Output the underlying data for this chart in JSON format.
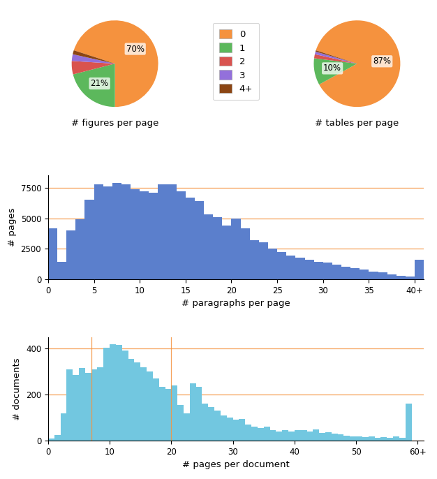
{
  "pie_figures": {
    "values": [
      70,
      21,
      5,
      2.5,
      1.5
    ],
    "colors": [
      "#f5923e",
      "#5cb85c",
      "#d9534f",
      "#9370DB",
      "#8B4513"
    ],
    "labels": [
      "0",
      "1",
      "2",
      "3",
      "4+"
    ],
    "autopct_vals": [
      70,
      21,
      0,
      0,
      0
    ],
    "autopct_strs": [
      "70%",
      "21%",
      "",
      "",
      ""
    ],
    "title": "# figures per page",
    "startangle": 162,
    "counterclock": false
  },
  "pie_tables": {
    "values": [
      87,
      10,
      1.5,
      1,
      0.5
    ],
    "colors": [
      "#f5923e",
      "#5cb85c",
      "#d9534f",
      "#9370DB",
      "#8B4513"
    ],
    "labels": [
      "0",
      "1",
      "2",
      "3",
      "4+"
    ],
    "autopct_strs": [
      "87%",
      "10%",
      "",
      "",
      ""
    ],
    "title": "# tables per page",
    "startangle": 162,
    "counterclock": false
  },
  "hist_paragraphs": {
    "values": [
      4200,
      1400,
      4000,
      4900,
      6500,
      7800,
      7600,
      7900,
      7800,
      7400,
      7200,
      7100,
      7800,
      7800,
      7200,
      6700,
      6400,
      5300,
      5100,
      4400,
      5000,
      4200,
      3200,
      3000,
      2500,
      2200,
      1950,
      1750,
      1600,
      1450,
      1350,
      1200,
      1050,
      900,
      800,
      650,
      550,
      400,
      300,
      200,
      1600
    ],
    "color": "#5b7fcc",
    "xlabel": "# paragraphs per page",
    "ylabel": "# pages",
    "xlim": [
      0,
      41
    ],
    "ylim": [
      0,
      8500
    ],
    "xticks": [
      0,
      5,
      10,
      15,
      20,
      25,
      30,
      35,
      40
    ],
    "xticklabels": [
      "0",
      "5",
      "10",
      "15",
      "20",
      "25",
      "30",
      "35",
      "40+"
    ],
    "yticks": [
      0,
      2500,
      5000,
      7500
    ],
    "yticklabels": [
      "0",
      "2500",
      "5000",
      "7500"
    ],
    "grid_color": "#f5923e"
  },
  "hist_pages": {
    "values": [
      10,
      25,
      120,
      310,
      285,
      315,
      295,
      310,
      320,
      405,
      420,
      415,
      390,
      355,
      340,
      320,
      300,
      270,
      235,
      225,
      240,
      155,
      120,
      250,
      235,
      160,
      145,
      130,
      110,
      100,
      90,
      95,
      70,
      60,
      55,
      60,
      45,
      40,
      45,
      40,
      45,
      45,
      40,
      50,
      35,
      38,
      32,
      28,
      22,
      18,
      20,
      15,
      18,
      12,
      15,
      12,
      18,
      12,
      160
    ],
    "color": "#72c7e0",
    "xlabel": "# pages per document",
    "ylabel": "# documents",
    "xlim": [
      0,
      61
    ],
    "ylim": [
      0,
      450
    ],
    "xticks": [
      0,
      10,
      20,
      30,
      40,
      50,
      60
    ],
    "xticklabels": [
      "0",
      "10",
      "20",
      "30",
      "40",
      "50",
      "60+"
    ],
    "yticks": [
      0,
      200,
      400
    ],
    "yticklabels": [
      "0",
      "200",
      "400"
    ],
    "vlines": [
      7,
      20
    ],
    "grid_color": "#f5923e"
  },
  "legend_labels": [
    "0",
    "1",
    "2",
    "3",
    "4+"
  ],
  "legend_colors": [
    "#f5923e",
    "#5cb85c",
    "#d9534f",
    "#9370DB",
    "#8B4513"
  ]
}
